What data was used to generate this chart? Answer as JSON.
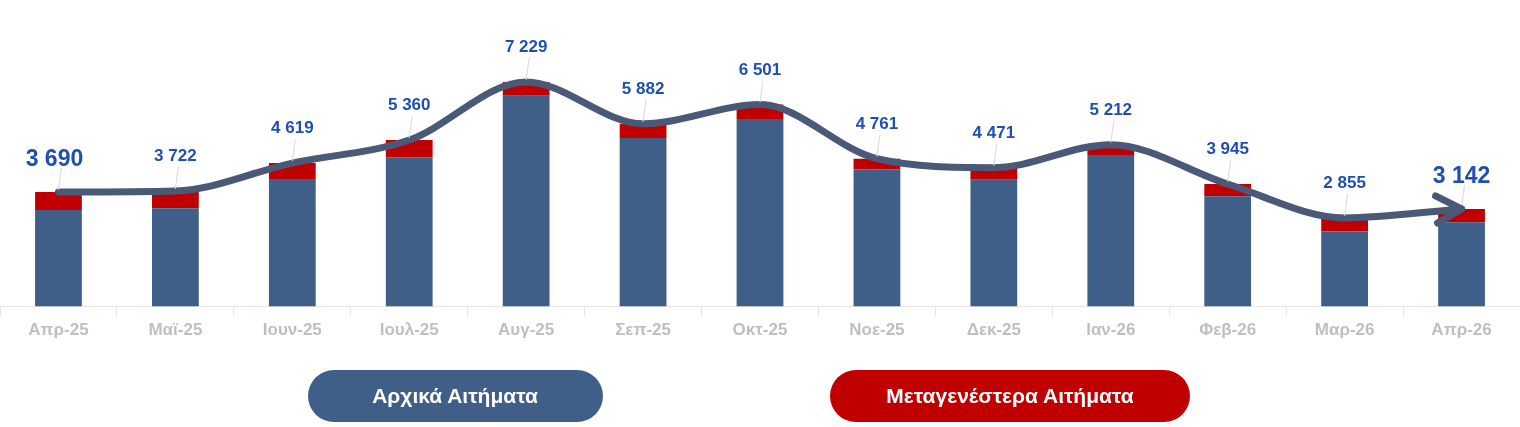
{
  "chart_data": {
    "type": "bar",
    "stacked": true,
    "categories": [
      "Απρ-25",
      "Μαϊ-25",
      "Ιουν-25",
      "Ιουλ-25",
      "Αυγ-25",
      "Σεπ-25",
      "Οκτ-25",
      "Νοε-25",
      "Δεκ-25",
      "Ιαν-26",
      "Φεβ-26",
      "Μαρ-26",
      "Απρ-26"
    ],
    "series": [
      {
        "name": "Αρχικά Αιτήματα",
        "color": "#3f5f89",
        "values": [
          3105,
          3162,
          4109,
          4810,
          6789,
          5422,
          6041,
          4421,
          4081,
          4882,
          3555,
          2415,
          2712
        ]
      },
      {
        "name": "Μεταγενέστερα Αιτήματα",
        "color": "#c00000",
        "values": [
          585,
          560,
          510,
          550,
          440,
          460,
          460,
          340,
          390,
          330,
          390,
          440,
          430
        ]
      },
      {
        "type": "line",
        "color": "#4a5978",
        "values": [
          3690,
          3722,
          4619,
          5360,
          7229,
          5882,
          6501,
          4761,
          4471,
          5212,
          3945,
          2855,
          3142
        ],
        "value_labels": [
          "3 690",
          "3 722",
          "4 619",
          "5 360",
          "7 229",
          "5 882",
          "6 501",
          "4 761",
          "4 471",
          "5 212",
          "3 945",
          "2 855",
          "3 142"
        ]
      }
    ],
    "tick_labels": "x",
    "grid": false,
    "legend": "bottom",
    "marker": "none"
  }
}
